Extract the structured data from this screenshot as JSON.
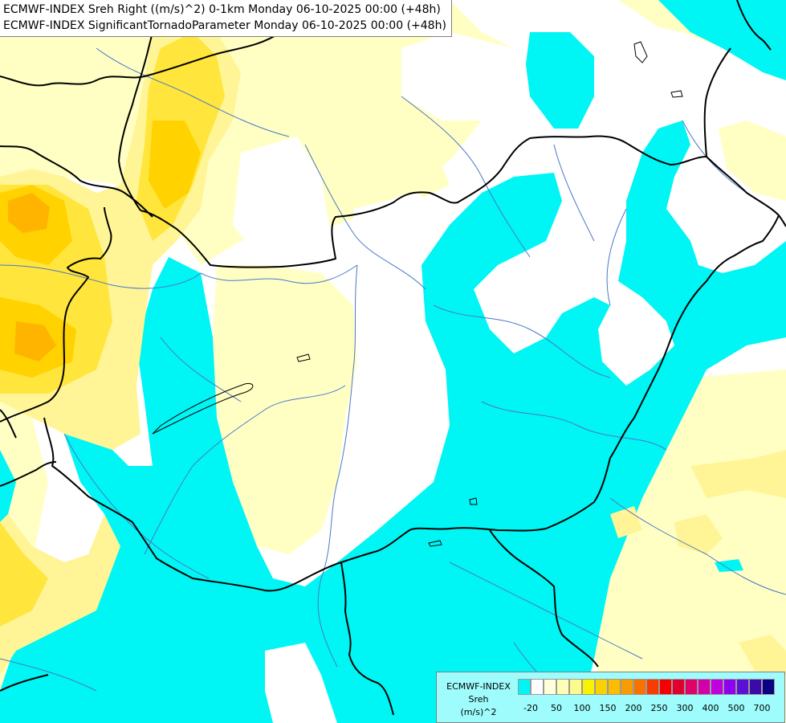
{
  "header": {
    "line1": "ECMWF-INDEX Sreh Right ((m/s)^2) 0-1km Monday 06-10-2025 00:00 (+48h)",
    "line2": "ECMWF-INDEX SignificantTornadoParameter Monday 06-10-2025 00:00 (+48h)"
  },
  "legend": {
    "title1": "ECMWF-INDEX",
    "title2": "Sreh",
    "title3": "(m/s)^2",
    "colors": [
      "#00f5f5",
      "#ffffff",
      "#ffffd9",
      "#fefeb7",
      "#fbfb8c",
      "#fbf200",
      "#fad200",
      "#fcbc00",
      "#f99c00",
      "#f87200",
      "#f83c00",
      "#f40000",
      "#df0030",
      "#e2006a",
      "#d100a9",
      "#c100df",
      "#8e00ee",
      "#5c10d6",
      "#3c0aaa",
      "#0c0082"
    ],
    "ticks": [
      "-20",
      "50",
      "100",
      "150",
      "200",
      "250",
      "300",
      "400",
      "500",
      "700"
    ]
  },
  "map": {
    "colors": {
      "cyan": "#00f5f5",
      "white": "#ffffff",
      "pale_yellow": "#ffffc4",
      "yellow_light": "#fff596",
      "yellow": "#ffe53c",
      "yellow_deep": "#ffd200",
      "orange": "#ffb400",
      "border": "#000000",
      "river": "#4a78c6"
    }
  }
}
